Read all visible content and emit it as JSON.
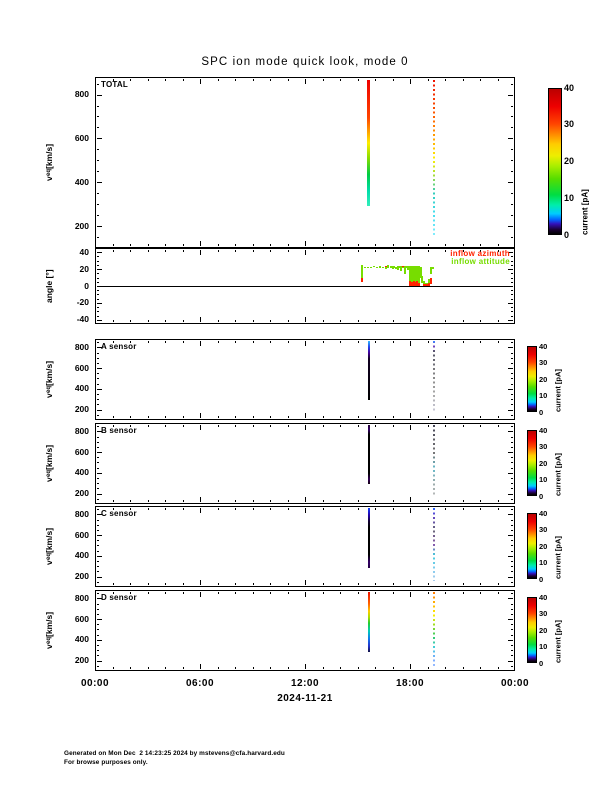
{
  "title": "SPC ion mode quick look, mode 0",
  "x_axis": {
    "tick_labels": [
      "00:00",
      "06:00",
      "12:00",
      "18:00",
      "00:00"
    ],
    "date_label": "2024-11-21",
    "span_hours": 24,
    "major_tick_hours": 6,
    "minor_tick_hours": 1
  },
  "colorbar": {
    "label": "current [pA]",
    "ticks": [
      0,
      10,
      20,
      30,
      40
    ],
    "min": 0,
    "max": 40,
    "gradient": [
      "#000000 0%",
      "#1a0033 3%",
      "#3311bb 7%",
      "#0066ff 10%",
      "#00ccff 14%",
      "#00eeaa 20%",
      "#00dd44 27%",
      "#55dd00 38%",
      "#aaee00 47%",
      "#eeee00 54%",
      "#ffcc00 62%",
      "#ff8800 69%",
      "#ff4400 76%",
      "#ee0000 88%",
      "#bb0000 100%"
    ]
  },
  "legend": {
    "items": [
      {
        "label": "inflow azimuth",
        "color": "#ff2200"
      },
      {
        "label": "inflow attitude",
        "color": "#77dd00"
      }
    ]
  },
  "footer": {
    "line1": "Generated on Mon Dec  2 14:23:25 2024 by mstevens@cfa.harvard.edu",
    "line2": "For browse purposes only."
  },
  "chart_data": {
    "type": "heatmap",
    "title": "SPC ion mode quick look, mode 0",
    "date": "2024-11-21",
    "x_range_hours": [
      0,
      24
    ],
    "colorbar_label": "current [pA]",
    "colorbar_range": [
      0,
      40
    ],
    "panels": [
      {
        "id": "total",
        "label": "TOTAL",
        "kind": "spectrogram",
        "colorbar": "large",
        "ylabel": "v_eq [km/s]",
        "ylim": [
          100,
          880
        ],
        "yticks": [
          200,
          400,
          600,
          800
        ],
        "minor_step": 50,
        "stripes": [
          {
            "t": 15.65,
            "width": 3,
            "v_top": 865,
            "v_bot": 290,
            "style": "solid",
            "stops": [
              [
                0,
                "#ee0000"
              ],
              [
                0.3,
                "#ff4400"
              ],
              [
                0.4,
                "#ff9900"
              ],
              [
                0.5,
                "#ffee00"
              ],
              [
                0.62,
                "#88dd00"
              ],
              [
                0.75,
                "#00cc44"
              ],
              [
                0.88,
                "#00ddaa"
              ],
              [
                1,
                "#33eebb"
              ]
            ]
          },
          {
            "t": 19.37,
            "width": 2,
            "v_top": 865,
            "v_bot": 150,
            "style": "dotted",
            "stops": [
              [
                0,
                "#ee1100"
              ],
              [
                0.25,
                "#ff6600"
              ],
              [
                0.38,
                "#ffaa00"
              ],
              [
                0.5,
                "#ffee00"
              ],
              [
                0.6,
                "#aadd33"
              ],
              [
                0.72,
                "#33ccbb"
              ],
              [
                0.85,
                "#44ddee"
              ],
              [
                1,
                "#88eeff"
              ]
            ]
          }
        ]
      },
      {
        "id": "angle",
        "label": "",
        "kind": "line",
        "zero_line": true,
        "has_legend": true,
        "ylabel": "angle [°]",
        "ylim": [
          -45,
          45
        ],
        "yticks": [
          -40,
          -20,
          0,
          20,
          40
        ],
        "minor_step": 5,
        "series": [
          {
            "name": "inflow attitude",
            "color": "#77dd00",
            "segments": [
              [
                15.27,
                8,
                25
              ],
              [
                15.45,
                21,
                23
              ],
              [
                15.6,
                21,
                23
              ],
              [
                15.78,
                21,
                23
              ],
              [
                15.95,
                22,
                24
              ],
              [
                16.1,
                21,
                23
              ],
              [
                16.3,
                21,
                24
              ],
              [
                16.45,
                21,
                23
              ],
              [
                16.6,
                20,
                24
              ],
              [
                16.75,
                21,
                25
              ],
              [
                16.9,
                21,
                24
              ],
              [
                17.0,
                20,
                24
              ],
              [
                17.1,
                21,
                24
              ],
              [
                17.2,
                20,
                23
              ],
              [
                17.3,
                19,
                24
              ],
              [
                17.4,
                21,
                24
              ],
              [
                17.5,
                18,
                24
              ],
              [
                17.6,
                21,
                24
              ],
              [
                17.7,
                14,
                24
              ],
              [
                17.8,
                21,
                24
              ],
              [
                17.9,
                19,
                24
              ],
              [
                18.0,
                3,
                24
              ],
              [
                18.1,
                2,
                24
              ],
              [
                18.2,
                2,
                24
              ],
              [
                18.3,
                3,
                24
              ],
              [
                18.4,
                2,
                24
              ],
              [
                18.5,
                4,
                24
              ],
              [
                18.6,
                10,
                22
              ],
              [
                18.7,
                4,
                12
              ],
              [
                18.8,
                1,
                6
              ],
              [
                18.9,
                0,
                4
              ],
              [
                19.0,
                0,
                3
              ],
              [
                19.1,
                1,
                8
              ],
              [
                19.2,
                14,
                22
              ],
              [
                19.3,
                20,
                23
              ]
            ]
          },
          {
            "name": "inflow azimuth",
            "color": "#ff2200",
            "segments": [
              [
                15.27,
                5,
                9
              ],
              [
                16.6,
                22,
                24
              ],
              [
                17.6,
                22,
                24
              ],
              [
                18.0,
                0,
                6
              ],
              [
                18.1,
                0,
                5
              ],
              [
                18.2,
                0,
                6
              ],
              [
                18.3,
                0,
                5
              ],
              [
                18.4,
                0,
                6
              ],
              [
                18.5,
                0,
                4
              ],
              [
                18.8,
                0,
                2
              ],
              [
                18.9,
                0,
                2
              ],
              [
                19.0,
                0,
                2
              ],
              [
                19.1,
                0,
                3
              ],
              [
                19.2,
                2,
                10
              ]
            ]
          }
        ]
      },
      {
        "id": "sensor_a",
        "label": "A sensor",
        "kind": "spectrogram",
        "colorbar": "small",
        "ylabel": "v_eq [km/s]",
        "ylim": [
          100,
          880
        ],
        "yticks": [
          200,
          400,
          600,
          800
        ],
        "minor_step": 50,
        "stripes": [
          {
            "t": 15.65,
            "width": 2.5,
            "v_top": 865,
            "v_bot": 290,
            "style": "solid",
            "stops": [
              [
                0,
                "#33bbff"
              ],
              [
                0.1,
                "#2244ee"
              ],
              [
                0.2,
                "#440099"
              ],
              [
                0.3,
                "#110022"
              ],
              [
                1,
                "#000000"
              ]
            ]
          },
          {
            "t": 19.37,
            "width": 1.5,
            "v_top": 865,
            "v_bot": 170,
            "style": "dotted",
            "stops": [
              [
                0,
                "#3388ff"
              ],
              [
                0.06,
                "#7744cc"
              ],
              [
                0.15,
                "#555566"
              ],
              [
                0.5,
                "#888888"
              ],
              [
                0.75,
                "#aaaaaa"
              ],
              [
                1,
                "#ccccdd"
              ]
            ]
          }
        ]
      },
      {
        "id": "sensor_b",
        "label": "B sensor",
        "kind": "spectrogram",
        "colorbar": "small",
        "ylabel": "v_eq [km/s]",
        "ylim": [
          100,
          880
        ],
        "yticks": [
          200,
          400,
          600,
          800
        ],
        "minor_step": 50,
        "stripes": [
          {
            "t": 15.65,
            "width": 2.5,
            "v_top": 865,
            "v_bot": 290,
            "style": "solid",
            "stops": [
              [
                0,
                "#220033"
              ],
              [
                0.08,
                "#330066"
              ],
              [
                0.16,
                "#000000"
              ],
              [
                0.82,
                "#000000"
              ],
              [
                0.92,
                "#330055"
              ],
              [
                1,
                "#110011"
              ]
            ]
          },
          {
            "t": 19.37,
            "width": 1.5,
            "v_top": 865,
            "v_bot": 170,
            "style": "dotted",
            "stops": [
              [
                0,
                "#444455"
              ],
              [
                0.4,
                "#777777"
              ],
              [
                0.6,
                "#66bbcc"
              ],
              [
                0.8,
                "#99aaaa"
              ],
              [
                1,
                "#bbbbbb"
              ]
            ]
          }
        ]
      },
      {
        "id": "sensor_c",
        "label": "C sensor",
        "kind": "spectrogram",
        "colorbar": "small",
        "ylabel": "v_eq [km/s]",
        "ylim": [
          100,
          880
        ],
        "yticks": [
          200,
          400,
          600,
          800
        ],
        "minor_step": 50,
        "stripes": [
          {
            "t": 15.65,
            "width": 2.5,
            "v_top": 865,
            "v_bot": 280,
            "style": "solid",
            "stops": [
              [
                0,
                "#1144ff"
              ],
              [
                0.12,
                "#2200aa"
              ],
              [
                0.22,
                "#110033"
              ],
              [
                0.32,
                "#000000"
              ],
              [
                0.78,
                "#000000"
              ],
              [
                0.9,
                "#330066"
              ],
              [
                1,
                "#220044"
              ]
            ]
          },
          {
            "t": 19.37,
            "width": 1.5,
            "v_top": 865,
            "v_bot": 160,
            "style": "dotted",
            "stops": [
              [
                0,
                "#2266ff"
              ],
              [
                0.1,
                "#6644cc"
              ],
              [
                0.3,
                "#666677"
              ],
              [
                0.5,
                "#8855aa"
              ],
              [
                0.65,
                "#44ccdd"
              ],
              [
                0.85,
                "#88ccee"
              ],
              [
                1,
                "#aaccee"
              ]
            ]
          }
        ]
      },
      {
        "id": "sensor_d",
        "label": "D sensor",
        "kind": "spectrogram",
        "colorbar": "small",
        "ylabel": "v_eq [km/s]",
        "ylim": [
          100,
          880
        ],
        "yticks": [
          200,
          400,
          600,
          800
        ],
        "minor_step": 50,
        "stripes": [
          {
            "t": 15.65,
            "width": 2.5,
            "v_top": 865,
            "v_bot": 280,
            "style": "solid",
            "stops": [
              [
                0,
                "#ee1100"
              ],
              [
                0.2,
                "#ff6600"
              ],
              [
                0.32,
                "#ffcc00"
              ],
              [
                0.42,
                "#aadd00"
              ],
              [
                0.52,
                "#22cc33"
              ],
              [
                0.65,
                "#00ccbb"
              ],
              [
                0.78,
                "#1177ee"
              ],
              [
                0.9,
                "#2233cc"
              ],
              [
                1,
                "#111144"
              ]
            ]
          },
          {
            "t": 19.37,
            "width": 1.5,
            "v_top": 865,
            "v_bot": 150,
            "style": "dotted",
            "stops": [
              [
                0,
                "#ff7700"
              ],
              [
                0.18,
                "#ffbb00"
              ],
              [
                0.3,
                "#ffee00"
              ],
              [
                0.45,
                "#99dd22"
              ],
              [
                0.6,
                "#33cc66"
              ],
              [
                0.75,
                "#44ccdd"
              ],
              [
                0.9,
                "#77aaff"
              ],
              [
                1,
                "#99bbff"
              ]
            ]
          }
        ]
      }
    ]
  }
}
